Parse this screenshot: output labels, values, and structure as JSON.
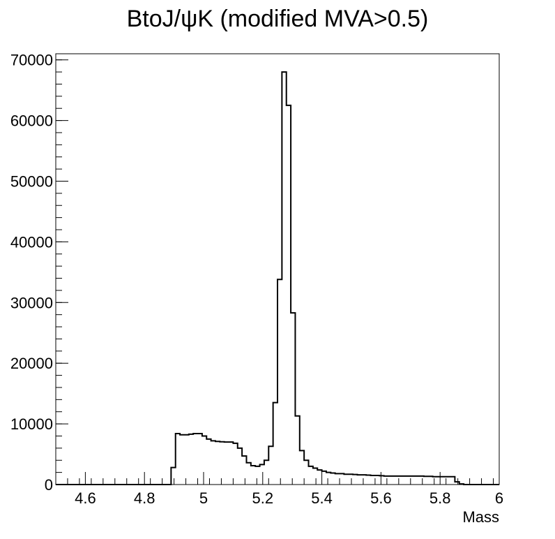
{
  "chart_data": {
    "type": "histogram",
    "title": "BtoJ/ψK (modified MVA>0.5)",
    "xlabel": "Mass",
    "ylabel": "",
    "xlim": [
      4.5,
      6.0
    ],
    "ylim": [
      0,
      71000
    ],
    "x_major_ticks": [
      4.6,
      4.8,
      5.0,
      5.2,
      5.4,
      5.6,
      5.8,
      6.0
    ],
    "x_tick_labels": [
      "4.6",
      "4.8",
      "5",
      "5.2",
      "5.4",
      "5.6",
      "5.8",
      "6"
    ],
    "y_major_ticks": [
      0,
      10000,
      20000,
      30000,
      40000,
      50000,
      60000,
      70000
    ],
    "y_tick_labels": [
      "0",
      "10000",
      "20000",
      "30000",
      "40000",
      "50000",
      "60000",
      "70000"
    ],
    "x_minor_step": 0.04,
    "y_minor_step": 2000,
    "bin_edges_start": 4.5,
    "bin_width": 0.015,
    "values": [
      0,
      0,
      0,
      0,
      0,
      0,
      0,
      0,
      0,
      0,
      0,
      0,
      0,
      0,
      0,
      0,
      0,
      0,
      0,
      0,
      0,
      0,
      0,
      0,
      0,
      0,
      2800,
      8400,
      8200,
      8200,
      8300,
      8400,
      8400,
      8000,
      7500,
      7200,
      7100,
      7050,
      7000,
      7000,
      6800,
      6000,
      4700,
      3600,
      3100,
      3000,
      3300,
      4000,
      6300,
      13500,
      33800,
      68000,
      62500,
      28300,
      11300,
      5600,
      4000,
      3000,
      2700,
      2400,
      2200,
      2000,
      1900,
      1800,
      1800,
      1700,
      1700,
      1650,
      1600,
      1600,
      1550,
      1500,
      1500,
      1450,
      1400,
      1400,
      1400,
      1400,
      1400,
      1400,
      1400,
      1400,
      1400,
      1350,
      1350,
      1300,
      1300,
      1300,
      1300,
      1300,
      450,
      100,
      0,
      0,
      0,
      0,
      0,
      0,
      0,
      0
    ],
    "grid": false,
    "line_color": "#000000"
  }
}
